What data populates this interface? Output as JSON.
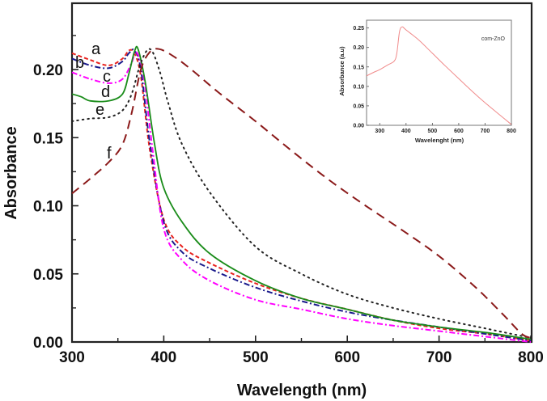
{
  "chart_data": [
    {
      "type": "line",
      "title": "",
      "xlabel": "Wavelength (nm)",
      "ylabel": "Absorbance",
      "xlim": [
        300,
        800
      ],
      "ylim": [
        0.0,
        0.245
      ],
      "xticks": [
        "300",
        "400",
        "500",
        "600",
        "700",
        "800"
      ],
      "yticks": [
        "0.00",
        "0.05",
        "0.10",
        "0.15",
        "0.20"
      ],
      "grid": false,
      "legend": "inline curve labels at left",
      "series": [
        {
          "name": "a",
          "color": "#e8231f",
          "dash": "dash",
          "x": [
            300,
            320,
            340,
            355,
            362,
            368,
            375,
            385,
            400,
            420,
            450,
            500,
            550,
            600,
            650,
            700,
            750,
            800
          ],
          "y": [
            0.212,
            0.207,
            0.203,
            0.208,
            0.214,
            0.212,
            0.195,
            0.14,
            0.09,
            0.07,
            0.058,
            0.043,
            0.032,
            0.024,
            0.016,
            0.01,
            0.006,
            0.001
          ]
        },
        {
          "name": "b",
          "color": "#1a1a8c",
          "dash": "dashdot",
          "x": [
            300,
            320,
            340,
            355,
            362,
            368,
            375,
            385,
            400,
            420,
            450,
            500,
            550,
            600,
            650,
            700,
            750,
            800
          ],
          "y": [
            0.208,
            0.203,
            0.201,
            0.206,
            0.212,
            0.214,
            0.2,
            0.145,
            0.088,
            0.066,
            0.054,
            0.04,
            0.03,
            0.022,
            0.016,
            0.011,
            0.006,
            0.001
          ]
        },
        {
          "name": "c",
          "color": "#ff00ff",
          "dash": "dashdot",
          "x": [
            300,
            320,
            340,
            355,
            365,
            370,
            378,
            388,
            400,
            420,
            450,
            500,
            550,
            600,
            650,
            700,
            750,
            800
          ],
          "y": [
            0.198,
            0.193,
            0.19,
            0.193,
            0.205,
            0.213,
            0.195,
            0.14,
            0.083,
            0.06,
            0.045,
            0.031,
            0.024,
            0.017,
            0.012,
            0.008,
            0.004,
            0.0
          ]
        },
        {
          "name": "d",
          "color": "#1a8c1a",
          "dash": "solid",
          "x": [
            300,
            310,
            320,
            340,
            355,
            362,
            368,
            372,
            380,
            390,
            400,
            420,
            450,
            500,
            550,
            600,
            650,
            700,
            750,
            800
          ],
          "y": [
            0.182,
            0.18,
            0.177,
            0.177,
            0.182,
            0.197,
            0.213,
            0.215,
            0.19,
            0.145,
            0.113,
            0.088,
            0.065,
            0.045,
            0.032,
            0.024,
            0.016,
            0.011,
            0.007,
            0.002
          ]
        },
        {
          "name": "e",
          "color": "#222222",
          "dash": "dot",
          "x": [
            300,
            320,
            340,
            355,
            365,
            375,
            385,
            395,
            405,
            420,
            450,
            500,
            550,
            600,
            650,
            700,
            750,
            800
          ],
          "y": [
            0.162,
            0.164,
            0.165,
            0.17,
            0.182,
            0.205,
            0.215,
            0.2,
            0.175,
            0.145,
            0.11,
            0.07,
            0.05,
            0.035,
            0.025,
            0.017,
            0.01,
            0.003
          ]
        },
        {
          "name": "f",
          "color": "#8b1a1a",
          "dash": "longdash",
          "x": [
            300,
            320,
            340,
            355,
            365,
            375,
            385,
            395,
            410,
            430,
            460,
            500,
            540,
            580,
            620,
            660,
            700,
            740,
            770,
            790,
            800
          ],
          "y": [
            0.109,
            0.12,
            0.132,
            0.145,
            0.168,
            0.2,
            0.213,
            0.215,
            0.21,
            0.2,
            0.183,
            0.162,
            0.14,
            0.119,
            0.1,
            0.082,
            0.063,
            0.04,
            0.02,
            0.006,
            0.003
          ]
        }
      ]
    },
    {
      "type": "line",
      "title": "",
      "xlabel": "Wavelenght (nm)",
      "ylabel": "Absorbance (a.u)",
      "xlim": [
        250,
        800
      ],
      "ylim": [
        0.0,
        0.27
      ],
      "xticks": [
        "300",
        "400",
        "500",
        "600",
        "700",
        "800"
      ],
      "yticks": [
        "0.00",
        "0.05",
        "0.10",
        "0.15",
        "0.20",
        "0.25"
      ],
      "grid": false,
      "legend": "top-right",
      "series": [
        {
          "name": "com-ZnO",
          "color": "#f08a8a",
          "x": [
            250,
            280,
            300,
            330,
            355,
            365,
            375,
            385,
            400,
            450,
            500,
            550,
            600,
            650,
            700,
            750,
            800
          ],
          "y": [
            0.127,
            0.137,
            0.143,
            0.155,
            0.165,
            0.185,
            0.24,
            0.253,
            0.245,
            0.218,
            0.185,
            0.152,
            0.12,
            0.088,
            0.058,
            0.03,
            0.002
          ]
        }
      ]
    }
  ]
}
